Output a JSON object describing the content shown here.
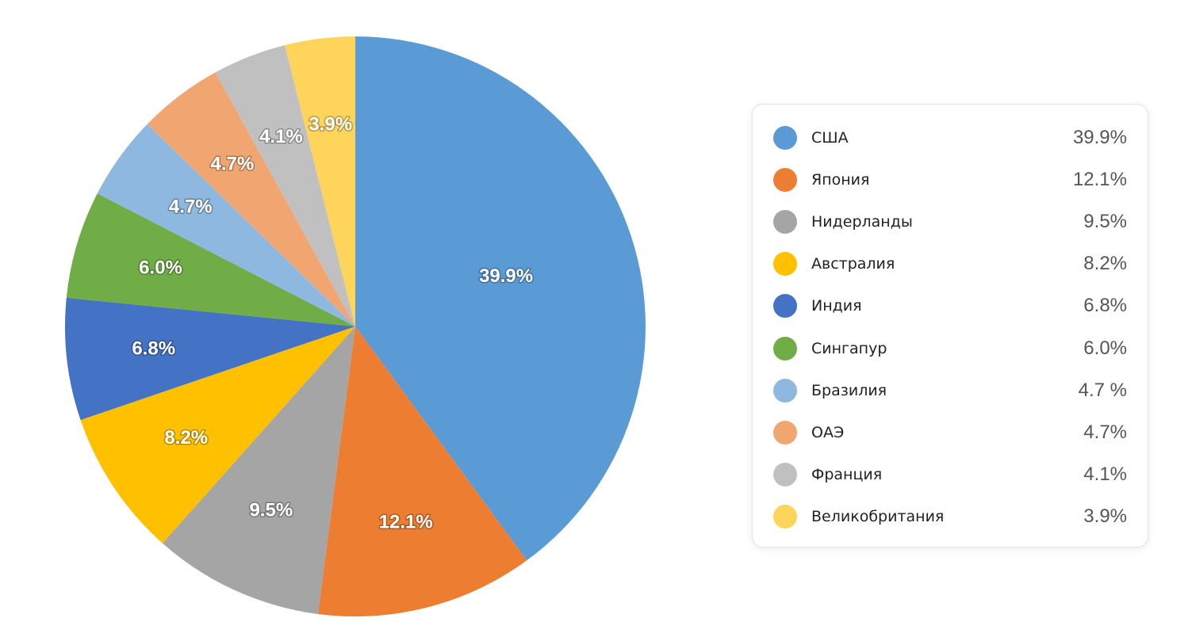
{
  "chart_data": {
    "type": "pie",
    "title": "",
    "legend_position": "right",
    "slices": [
      {
        "name": "США",
        "value": 39.9,
        "label": "39.9%",
        "legend_value": "39.9%",
        "color": "#5B9BD5"
      },
      {
        "name": "Япония",
        "value": 12.1,
        "label": "12.1%",
        "legend_value": "12.1%",
        "color": "#ED7D31"
      },
      {
        "name": "Нидерланды",
        "value": 9.5,
        "label": "9.5%",
        "legend_value": "9.5%",
        "color": "#A5A5A5"
      },
      {
        "name": "Австралия",
        "value": 8.2,
        "label": "8.2%",
        "legend_value": "8.2%",
        "color": "#FFC000"
      },
      {
        "name": "Индия",
        "value": 6.8,
        "label": "6.8%",
        "legend_value": "6.8%",
        "color": "#4472C4"
      },
      {
        "name": "Сингапур",
        "value": 6.0,
        "label": "6.0%",
        "legend_value": "6.0%",
        "color": "#70AD47"
      },
      {
        "name": "Бразилия",
        "value": 4.7,
        "label": "4.7%",
        "legend_value": "4.7 %",
        "color": "#8FB8E0"
      },
      {
        "name": "ОАЭ",
        "value": 4.7,
        "label": "4.7%",
        "legend_value": "4.7%",
        "color": "#F1A672"
      },
      {
        "name": "Франция",
        "value": 4.1,
        "label": "4.1%",
        "legend_value": "4.1%",
        "color": "#C0C0C0"
      },
      {
        "name": "Великобритания",
        "value": 3.9,
        "label": "3.9%",
        "legend_value": "3.9%",
        "color": "#FFD45A"
      }
    ]
  }
}
